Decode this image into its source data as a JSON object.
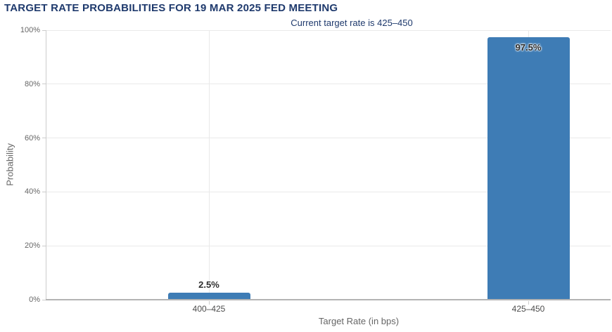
{
  "colors": {
    "bar": "#3e7cb5",
    "title_text": "#1f3a6d",
    "grid_line": "#e9e9e9",
    "axis_line": "#b3b3b3",
    "minor_axis_line": "#cccccc",
    "ytick_text": "#666666",
    "category_text": "#4d4d4d",
    "axis_title_text": "#666666",
    "data_label_text": "#2d2d2d"
  },
  "chart_data": {
    "type": "bar",
    "title": "TARGET RATE PROBABILITIES FOR 19 MAR 2025 FED MEETING",
    "subtitle": "Current target rate is 425–450",
    "categories": [
      "400–425",
      "425–450"
    ],
    "values": [
      2.5,
      97.5
    ],
    "value_labels": [
      "2.5%",
      "97.5%"
    ],
    "xlabel": "Target Rate (in bps)",
    "ylabel": "Probability",
    "ylim": [
      0,
      100
    ],
    "ytick_step": 20,
    "ytick_labels": [
      "0%",
      "20%",
      "40%",
      "60%",
      "80%",
      "100%"
    ],
    "grid": true,
    "legend_position": "none"
  }
}
